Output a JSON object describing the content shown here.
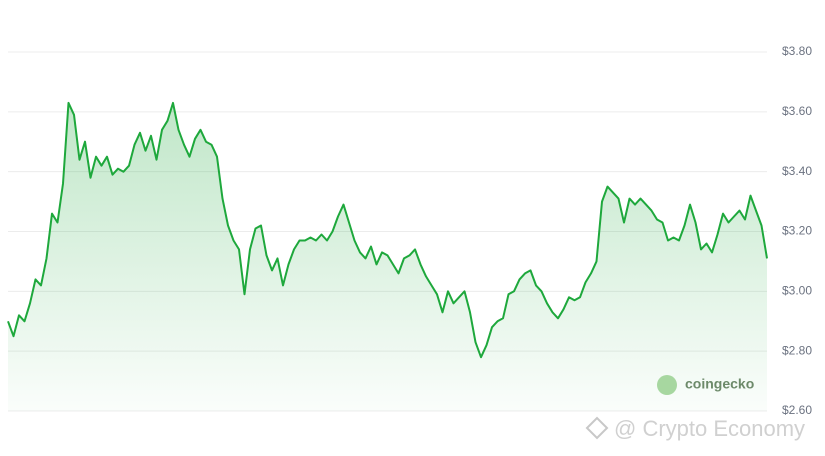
{
  "chart_data": {
    "type": "area",
    "values": [
      2.9,
      2.85,
      2.92,
      2.9,
      2.96,
      3.04,
      3.02,
      3.11,
      3.26,
      3.23,
      3.36,
      3.63,
      3.59,
      3.44,
      3.5,
      3.38,
      3.45,
      3.42,
      3.45,
      3.39,
      3.41,
      3.4,
      3.42,
      3.49,
      3.53,
      3.47,
      3.52,
      3.44,
      3.54,
      3.57,
      3.63,
      3.54,
      3.49,
      3.45,
      3.51,
      3.54,
      3.5,
      3.49,
      3.45,
      3.31,
      3.22,
      3.17,
      3.14,
      2.99,
      3.14,
      3.21,
      3.22,
      3.12,
      3.07,
      3.11,
      3.02,
      3.09,
      3.14,
      3.17,
      3.17,
      3.18,
      3.17,
      3.19,
      3.17,
      3.2,
      3.25,
      3.29,
      3.23,
      3.17,
      3.13,
      3.11,
      3.15,
      3.09,
      3.13,
      3.12,
      3.09,
      3.06,
      3.11,
      3.12,
      3.14,
      3.09,
      3.05,
      3.02,
      2.99,
      2.93,
      3.0,
      2.96,
      2.98,
      3.0,
      2.93,
      2.83,
      2.78,
      2.82,
      2.88,
      2.9,
      2.91,
      2.99,
      3.0,
      3.04,
      3.06,
      3.07,
      3.02,
      3.0,
      2.96,
      2.93,
      2.91,
      2.94,
      2.98,
      2.97,
      2.98,
      3.03,
      3.06,
      3.1,
      3.3,
      3.35,
      3.33,
      3.31,
      3.23,
      3.31,
      3.29,
      3.31,
      3.29,
      3.27,
      3.24,
      3.23,
      3.17,
      3.18,
      3.17,
      3.22,
      3.29,
      3.23,
      3.14,
      3.16,
      3.13,
      3.19,
      3.26,
      3.23,
      3.25,
      3.27,
      3.24,
      3.32,
      3.27,
      3.22,
      3.11
    ],
    "color": "#1ea83c",
    "ylim": [
      2.6,
      3.8
    ],
    "yticks": [
      {
        "value": 2.6,
        "label": "$2.60"
      },
      {
        "value": 2.8,
        "label": "$2.80"
      },
      {
        "value": 3.0,
        "label": "$3.00"
      },
      {
        "value": 3.2,
        "label": "$3.20"
      },
      {
        "value": 3.4,
        "label": "$3.40"
      },
      {
        "value": 3.6,
        "label": "$3.60"
      },
      {
        "value": 3.8,
        "label": "$3.80"
      }
    ],
    "grid": true,
    "annotations": [
      "coingecko",
      "@ Crypto Economy"
    ]
  }
}
